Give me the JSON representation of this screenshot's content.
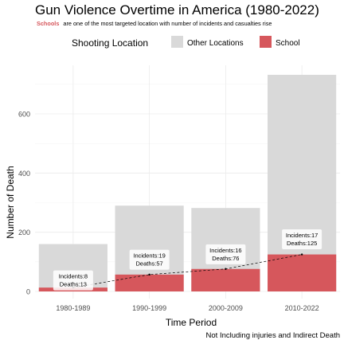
{
  "chart_data": {
    "type": "bar",
    "title": "Gun Violence Overtime in America (1980-2022)",
    "subtitle_highlight": "Schools",
    "subtitle_rest": "are one of the most targeted location with number of incidents and casualties rise",
    "legend_title": "Shooting Location",
    "legend_position": "top",
    "xlabel": "Time Period",
    "ylabel": "Number of Death",
    "caption": "Not Including injuries and Indirect Death",
    "ylim": [
      0,
      750
    ],
    "yticks": [
      0,
      200,
      400,
      600
    ],
    "grid": true,
    "categories": [
      "1980-1989",
      "1990-1999",
      "2000-2009",
      "2010-2022"
    ],
    "series": [
      {
        "name": "Other Locations",
        "color": "#d9d9d9",
        "values": [
          160,
          290,
          282,
          732
        ]
      },
      {
        "name": "School",
        "color": "#d6575c",
        "values": [
          13,
          57,
          76,
          125
        ]
      }
    ],
    "annotations": [
      {
        "label": "Incidents:8\nDeaths:13",
        "category": "1980-1989",
        "y": 36
      },
      {
        "label": "Incidents:19\nDeaths:57",
        "category": "1990-1999",
        "y": 106
      },
      {
        "label": "Incidents:16\nDeaths:76",
        "category": "2000-2009",
        "y": 124
      },
      {
        "label": "Incidents:17\nDeaths:125",
        "category": "2010-2022",
        "y": 175
      }
    ],
    "trend_line": "dashed"
  }
}
